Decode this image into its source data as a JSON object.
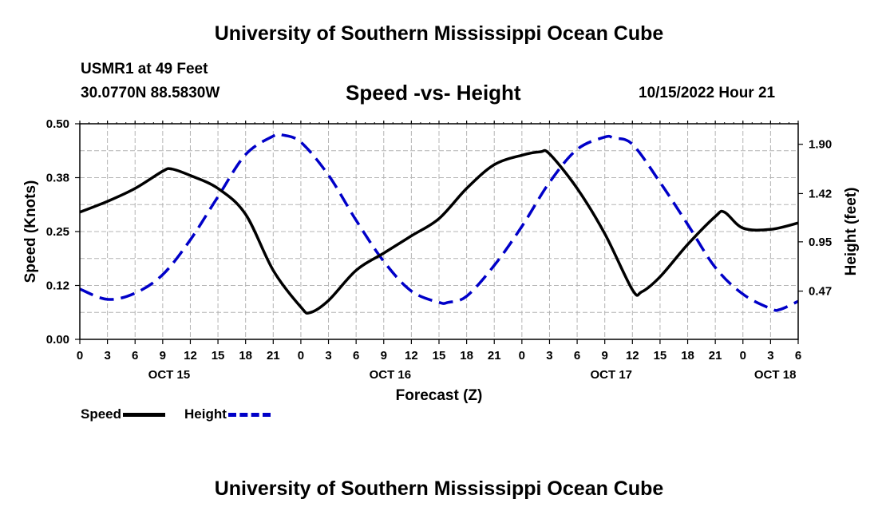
{
  "page": {
    "title": "University of Southern Mississippi Ocean Cube",
    "station": "USMR1 at 49 Feet",
    "coords": "30.0770N  88.5830W",
    "chart_title": "Speed -vs- Height",
    "date": "10/15/2022 Hour 21",
    "footer_title": "University of Southern Mississippi Ocean Cube"
  },
  "colors": {
    "speed": "#000000",
    "height": "#0000c8",
    "grid": "#b4b4b4"
  },
  "legend": {
    "speed_label": "Speed",
    "height_label": "Height"
  },
  "chart_data": {
    "type": "line",
    "title": "Speed -vs- Height",
    "xlabel": "Forecast (Z)",
    "ylabel": "Speed (Knots)",
    "y2label": "Height (feet)",
    "x_range_hours": [
      0,
      78
    ],
    "x_tick_step_hours": 3,
    "x_tick_labels": [
      "0",
      "3",
      "6",
      "9",
      "12",
      "15",
      "18",
      "21",
      "0",
      "3",
      "6",
      "9",
      "12",
      "15",
      "18",
      "21",
      "0",
      "3",
      "6",
      "9",
      "12",
      "15",
      "18",
      "21",
      "0",
      "3",
      "6"
    ],
    "day_labels": [
      {
        "label": "OCT 15",
        "hour": 9.7
      },
      {
        "label": "OCT 16",
        "hour": 33.7
      },
      {
        "label": "OCT 17",
        "hour": 57.7
      },
      {
        "label": "OCT 18",
        "hour": 75.5
      }
    ],
    "ylim": [
      0,
      0.5
    ],
    "y_ticks": [
      "0.00",
      "0.12",
      "0.25",
      "0.38",
      "0.50"
    ],
    "y2lim": [
      0.0,
      2.1
    ],
    "y2_ticks": [
      "0.47",
      "0.95",
      "1.42",
      "1.90"
    ],
    "grid": true,
    "series": [
      {
        "name": "Speed",
        "axis": "left",
        "style": "solid",
        "x": [
          0,
          3,
          6,
          9,
          10,
          12,
          15,
          18,
          21,
          24,
          25,
          27,
          30,
          33,
          36,
          39,
          42,
          45,
          48,
          50,
          51,
          54,
          57,
          60,
          61,
          63,
          66,
          69,
          70,
          72,
          75,
          78
        ],
        "values": [
          0.295,
          0.32,
          0.35,
          0.39,
          0.395,
          0.38,
          0.35,
          0.29,
          0.16,
          0.075,
          0.062,
          0.09,
          0.16,
          0.2,
          0.24,
          0.28,
          0.35,
          0.405,
          0.427,
          0.435,
          0.43,
          0.35,
          0.245,
          0.115,
          0.11,
          0.145,
          0.22,
          0.285,
          0.295,
          0.258,
          0.255,
          0.27
        ]
      },
      {
        "name": "Height",
        "axis": "right",
        "style": "dashed",
        "x": [
          0,
          3,
          6,
          9,
          12,
          15,
          18,
          21,
          22,
          24,
          27,
          30,
          33,
          36,
          39,
          40,
          42,
          45,
          48,
          51,
          54,
          57,
          58,
          60,
          63,
          66,
          69,
          72,
          75,
          76,
          78
        ],
        "values": [
          0.49,
          0.39,
          0.45,
          0.63,
          0.97,
          1.39,
          1.8,
          1.98,
          1.99,
          1.92,
          1.6,
          1.16,
          0.76,
          0.47,
          0.36,
          0.36,
          0.42,
          0.72,
          1.1,
          1.53,
          1.85,
          1.97,
          1.96,
          1.9,
          1.53,
          1.12,
          0.7,
          0.44,
          0.3,
          0.29,
          0.37
        ]
      }
    ]
  }
}
